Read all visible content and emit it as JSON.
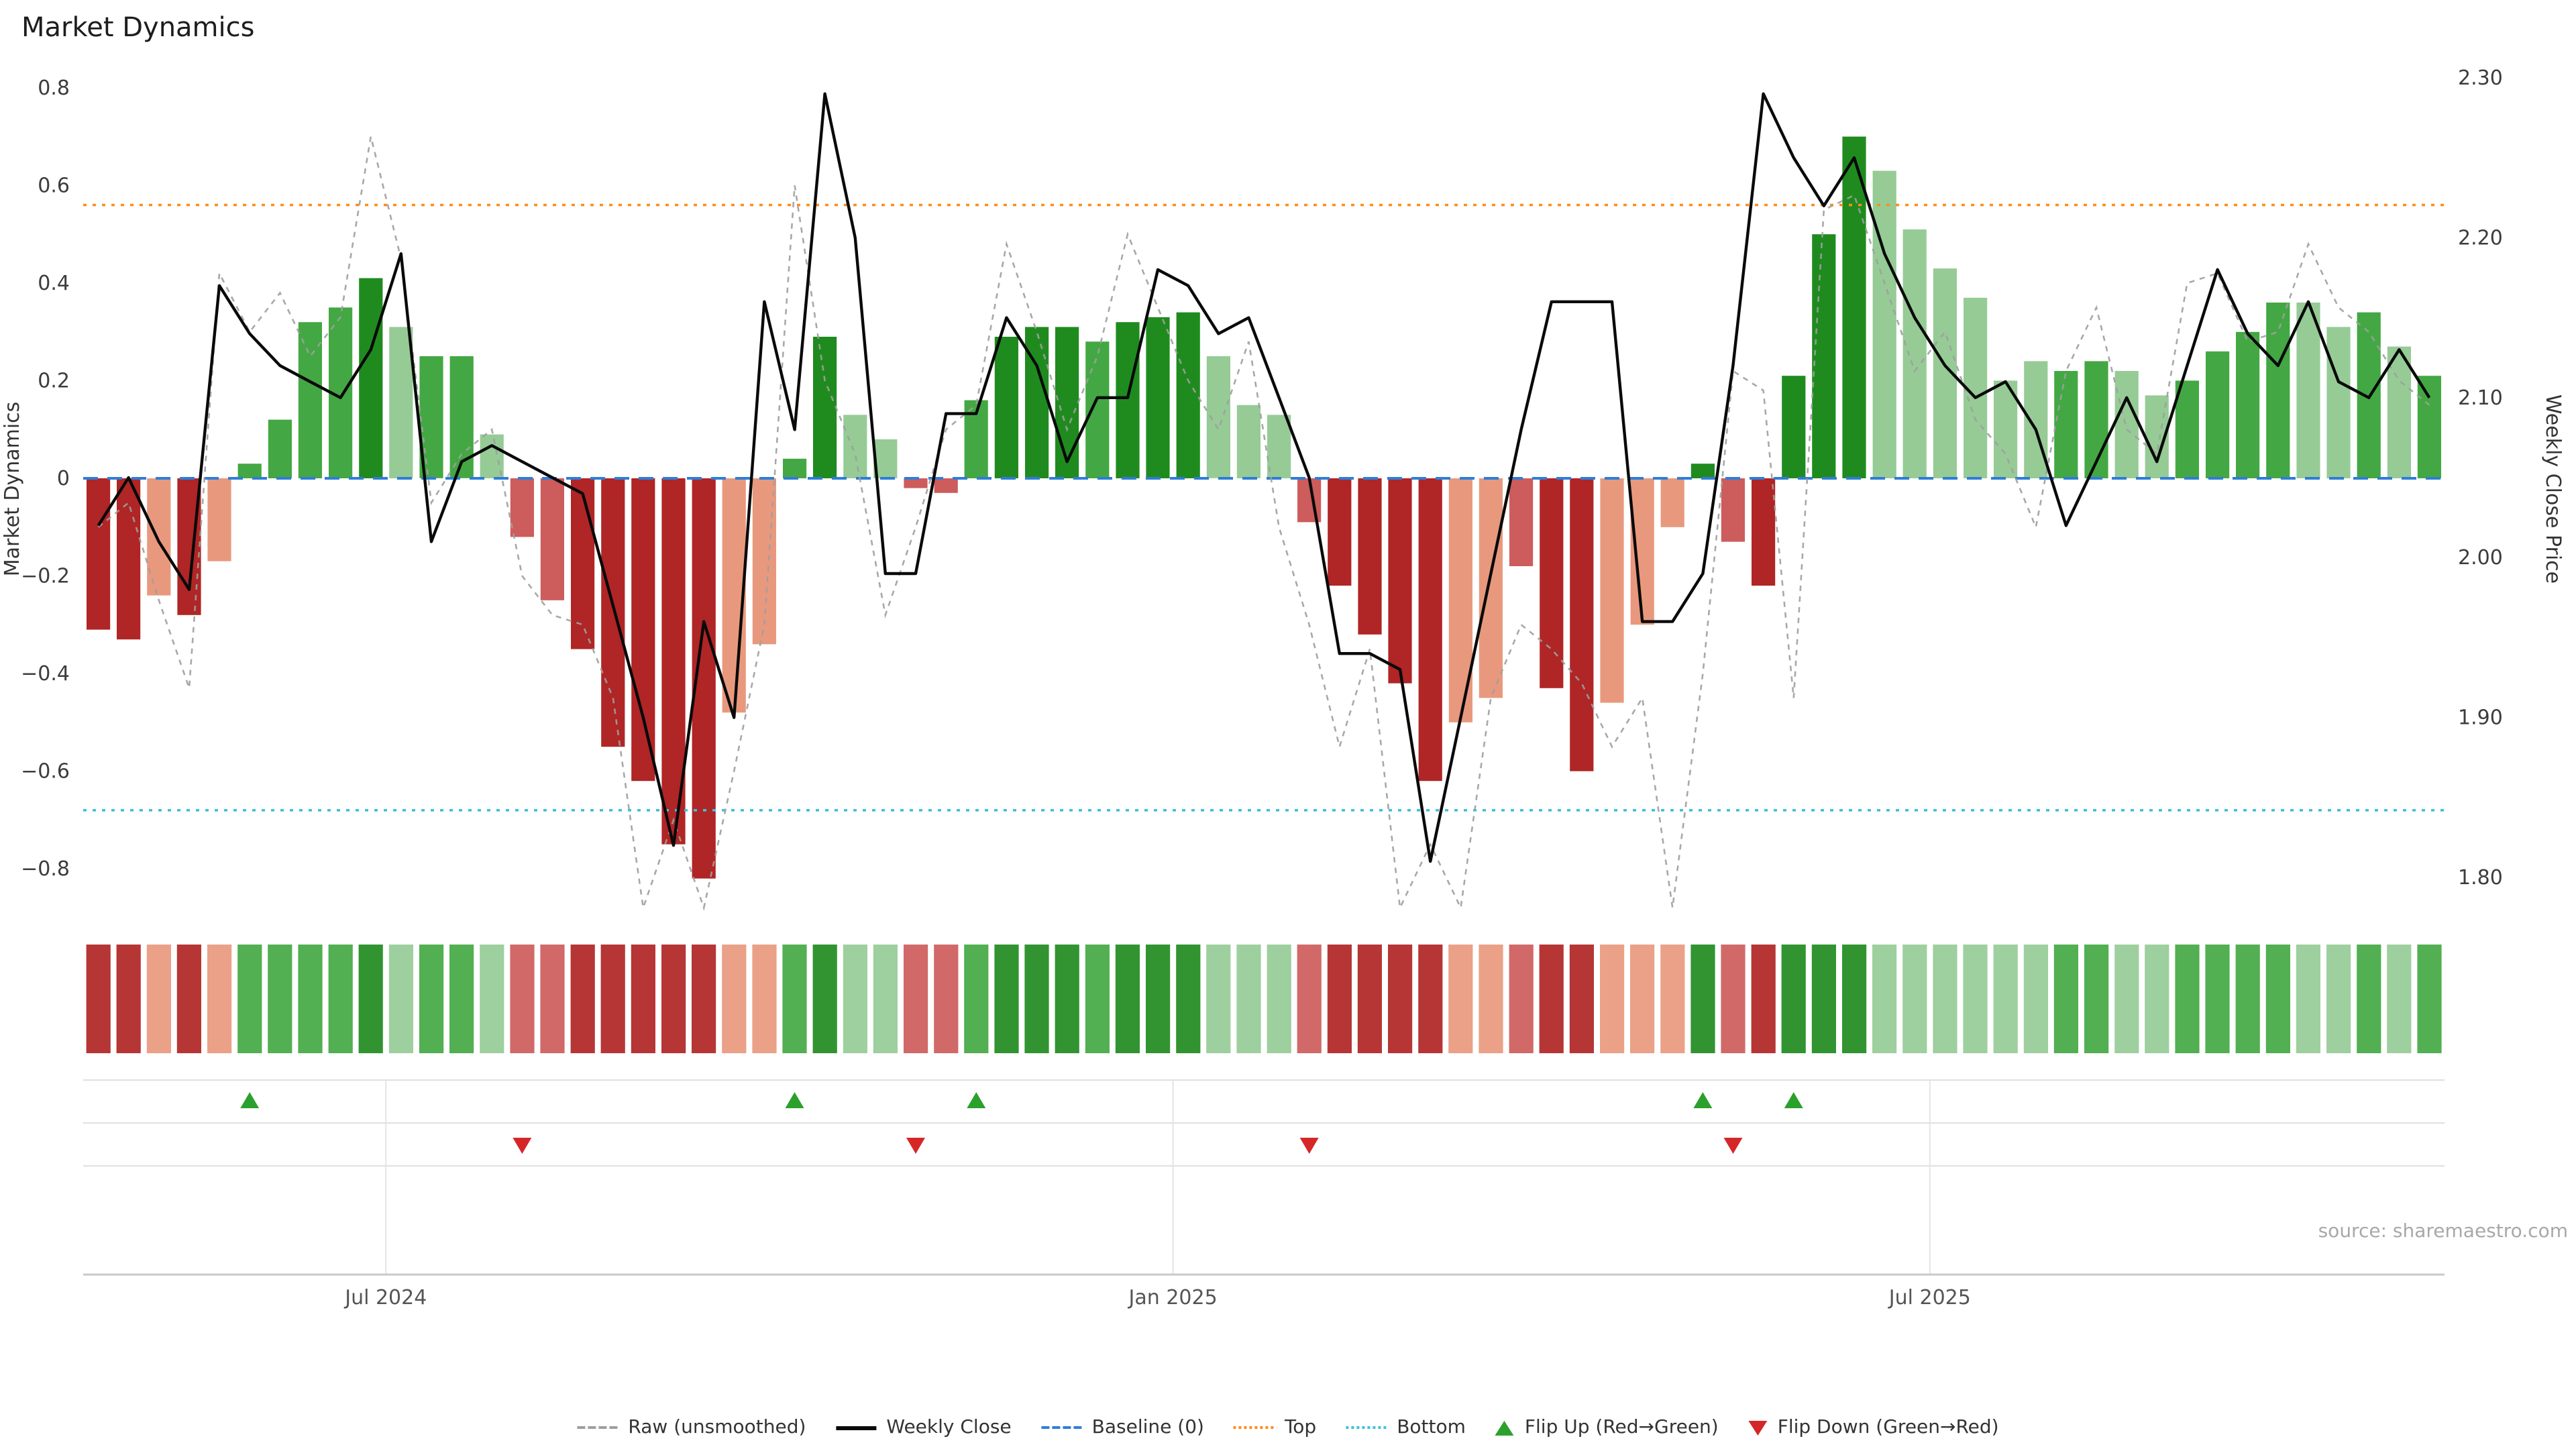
{
  "title": "Market Dynamics",
  "source": "source: sharemaestro.com",
  "legend": {
    "items": [
      {
        "label": "Raw (unsmoothed)"
      },
      {
        "label": "Weekly Close"
      },
      {
        "label": "Baseline (0)"
      },
      {
        "label": "Top"
      },
      {
        "label": "Bottom"
      },
      {
        "label": "Flip Up (Red→Green)"
      },
      {
        "label": "Flip Down (Green→Red)"
      }
    ]
  },
  "chart_data": {
    "type": "bar+line",
    "title": "Market Dynamics",
    "n_weeks": 78,
    "bar_series": {
      "name": "Market Dynamics",
      "values": [
        -0.31,
        -0.33,
        -0.24,
        -0.28,
        -0.17,
        0.03,
        0.12,
        0.32,
        0.35,
        0.41,
        0.31,
        0.25,
        0.25,
        0.09,
        -0.12,
        -0.25,
        -0.35,
        -0.55,
        -0.62,
        -0.75,
        -0.82,
        -0.48,
        -0.34,
        0.04,
        0.29,
        0.13,
        0.08,
        -0.02,
        -0.03,
        0.16,
        0.29,
        0.31,
        0.31,
        0.28,
        0.32,
        0.33,
        0.34,
        0.25,
        0.15,
        0.13,
        -0.09,
        -0.22,
        -0.32,
        -0.42,
        -0.62,
        -0.5,
        -0.45,
        -0.18,
        -0.43,
        -0.6,
        -0.46,
        -0.3,
        -0.1,
        0.03,
        -0.13,
        -0.22,
        0.21,
        0.5,
        0.7,
        0.63,
        0.51,
        0.43,
        0.37,
        0.2,
        0.24,
        0.22,
        0.24,
        0.22,
        0.17,
        0.2,
        0.26,
        0.3,
        0.36,
        0.36,
        0.31,
        0.34,
        0.27,
        0.21
      ],
      "shades": [
        "d",
        "d",
        "l",
        "d",
        "l",
        "m",
        "m",
        "m",
        "m",
        "d",
        "l",
        "m",
        "m",
        "l",
        "m",
        "m",
        "d",
        "d",
        "d",
        "d",
        "d",
        "l",
        "l",
        "m",
        "d",
        "l",
        "l",
        "m",
        "m",
        "m",
        "d",
        "d",
        "d",
        "m",
        "d",
        "d",
        "d",
        "l",
        "l",
        "l",
        "m",
        "d",
        "d",
        "d",
        "d",
        "l",
        "l",
        "m",
        "d",
        "d",
        "l",
        "l",
        "l",
        "d",
        "m",
        "d",
        "d",
        "d",
        "d",
        "l",
        "l",
        "l",
        "l",
        "l",
        "l",
        "m",
        "m",
        "l",
        "l",
        "m",
        "m",
        "m",
        "m",
        "l",
        "l",
        "m",
        "l",
        "m"
      ]
    },
    "line_series": [
      {
        "name": "Raw (unsmoothed)",
        "axis": "left",
        "values": [
          -0.1,
          -0.05,
          -0.25,
          -0.43,
          0.42,
          0.3,
          0.38,
          0.25,
          0.33,
          0.7,
          0.45,
          -0.05,
          0.05,
          0.1,
          -0.2,
          -0.28,
          -0.3,
          -0.45,
          -0.88,
          -0.7,
          -0.88,
          -0.6,
          -0.3,
          0.6,
          0.2,
          0.05,
          -0.28,
          -0.1,
          0.1,
          0.15,
          0.48,
          0.3,
          0.1,
          0.25,
          0.5,
          0.35,
          0.2,
          0.1,
          0.28,
          -0.1,
          -0.3,
          -0.55,
          -0.35,
          -0.88,
          -0.75,
          -0.88,
          -0.45,
          -0.3,
          -0.35,
          -0.42,
          -0.55,
          -0.45,
          -0.88,
          -0.4,
          0.22,
          0.18,
          -0.45,
          0.55,
          0.58,
          0.4,
          0.22,
          0.3,
          0.12,
          0.05,
          -0.1,
          0.22,
          0.35,
          0.1,
          0.05,
          0.4,
          0.42,
          0.28,
          0.3,
          0.48,
          0.35,
          0.3,
          0.2,
          0.15
        ]
      },
      {
        "name": "Weekly Close",
        "axis": "right",
        "values": [
          2.02,
          2.05,
          2.01,
          1.98,
          2.17,
          2.14,
          2.12,
          2.11,
          2.1,
          2.13,
          2.19,
          2.01,
          2.06,
          2.07,
          2.06,
          2.05,
          2.04,
          1.97,
          1.9,
          1.82,
          1.96,
          1.9,
          2.16,
          2.08,
          2.29,
          2.2,
          1.99,
          1.99,
          2.09,
          2.09,
          2.15,
          2.12,
          2.06,
          2.1,
          2.1,
          2.18,
          2.17,
          2.14,
          2.15,
          2.1,
          2.05,
          1.94,
          1.94,
          1.93,
          1.81,
          1.9,
          1.99,
          2.08,
          2.16,
          2.16,
          2.16,
          1.96,
          1.96,
          1.99,
          2.12,
          2.29,
          2.25,
          2.22,
          2.25,
          2.19,
          2.15,
          2.12,
          2.1,
          2.11,
          2.08,
          2.02,
          2.06,
          2.1,
          2.06,
          2.12,
          2.18,
          2.14,
          2.12,
          2.16,
          2.11,
          2.1,
          2.13,
          2.1
        ]
      }
    ],
    "reference_lines": [
      {
        "name": "Baseline (0)",
        "axis": "left",
        "value": 0,
        "color": "#2f7ed8",
        "style": "dashed"
      },
      {
        "name": "Top",
        "axis": "left",
        "value": 0.56,
        "color": "#ff8c1a",
        "style": "dotted"
      },
      {
        "name": "Bottom",
        "axis": "left",
        "value": -0.68,
        "color": "#3fc1d9",
        "style": "dotted"
      }
    ],
    "flip_markers": {
      "up": {
        "label": "Flip Up (Red→Green)",
        "color": "#2ca02c",
        "indices": [
          5,
          23,
          29,
          53,
          56
        ]
      },
      "down": {
        "label": "Flip Down (Green→Red)",
        "color": "#d62728",
        "indices": [
          14,
          27,
          40,
          54
        ]
      }
    },
    "heatmap_strip": {
      "derived_from": "bar_series"
    },
    "axes": {
      "left": {
        "label": "Market Dynamics",
        "tick_values": [
          0.8,
          0.6,
          0.4,
          0.2,
          0,
          -0.2,
          -0.4,
          -0.6,
          -0.8
        ],
        "tick_labels": [
          "0.8",
          "0.6",
          "0.4",
          "0.2",
          "0",
          "−0.2",
          "−0.4",
          "−0.6",
          "−0.8"
        ],
        "range": [
          -0.881,
          0.837
        ]
      },
      "right": {
        "label": "Weekly Close Price",
        "tick_values": [
          2.3,
          2.2,
          2.1,
          2.0,
          1.9,
          1.8
        ],
        "tick_labels": [
          "2.30",
          "2.20",
          "2.10",
          "2.00",
          "1.90",
          "1.80"
        ],
        "range": [
          1.78,
          2.3
        ]
      },
      "x": {
        "ticks": [
          {
            "index": 9.5,
            "label": "Jul 2024"
          },
          {
            "index": 35.5,
            "label": "Jan 2025"
          },
          {
            "index": 60.5,
            "label": "Jul 2025"
          }
        ]
      }
    },
    "colors": {
      "green": {
        "d": "#1f8b1f",
        "m": "#43a843",
        "l": "#96cb96"
      },
      "red": {
        "d": "#b02525",
        "m": "#cd5c5c",
        "l": "#e8997d"
      }
    }
  }
}
